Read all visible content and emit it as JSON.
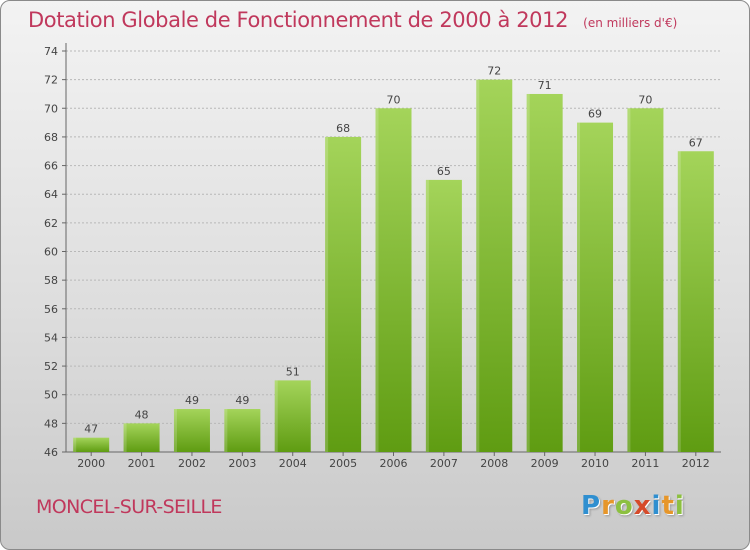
{
  "header": {
    "title": "Dotation Globale de Fonctionnement de 2000 à 2012",
    "unit": "(en milliers d'€)"
  },
  "footer": {
    "commune": "MONCEL-SUR-SEILLE",
    "logo_text": "Proxiti",
    "logo_letters": [
      {
        "char": "P",
        "color": "#2f8fd0"
      },
      {
        "char": "r",
        "color": "#e6962a"
      },
      {
        "char": "o",
        "color": "#8cc040"
      },
      {
        "char": "x",
        "color": "#d64a2a"
      },
      {
        "char": "i",
        "color": "#2f8fd0"
      },
      {
        "char": "t",
        "color": "#e6962a"
      },
      {
        "char": "i",
        "color": "#8cc040"
      }
    ]
  },
  "colors": {
    "bar_top": "#a4d45a",
    "bar_bottom": "#5f9c12",
    "title": "#c0385c",
    "grid": "#b8b8b8"
  },
  "chart_data": {
    "type": "bar",
    "categories": [
      "2000",
      "2001",
      "2002",
      "2003",
      "2004",
      "2005",
      "2006",
      "2007",
      "2008",
      "2009",
      "2010",
      "2011",
      "2012"
    ],
    "values": [
      47,
      48,
      49,
      49,
      51,
      68,
      70,
      65,
      72,
      71,
      69,
      70,
      67
    ],
    "ylim": [
      46,
      74
    ],
    "yticks": [
      46,
      48,
      50,
      52,
      54,
      56,
      58,
      60,
      62,
      64,
      66,
      68,
      70,
      72,
      74
    ],
    "grid": true,
    "data_labels": true
  }
}
